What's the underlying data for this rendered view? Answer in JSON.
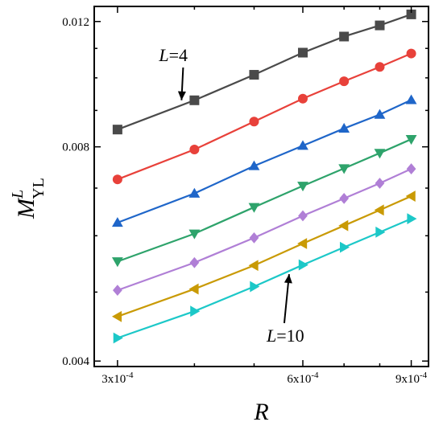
{
  "chart_data": {
    "type": "line",
    "xscale": "log",
    "yscale": "log",
    "xlim": [
      0.000275,
      0.00096
    ],
    "ylim": [
      0.00393,
      0.0126
    ],
    "xticks": [
      {
        "value": 0.0003,
        "label": "3x10-4"
      },
      {
        "value": 0.0006,
        "label": "6x10-4"
      },
      {
        "value": 0.0009,
        "label": "9x10-4"
      }
    ],
    "yticks": [
      {
        "value": 0.004,
        "label": "0.004"
      },
      {
        "value": 0.008,
        "label": "0.008"
      },
      {
        "value": 0.012,
        "label": "0.012"
      }
    ],
    "xlabel": "R",
    "ylabel": {
      "base": "M",
      "sup": "L",
      "sub": "YL"
    },
    "x": [
      0.0003,
      0.0004,
      0.0005,
      0.0006,
      0.0007,
      0.0008,
      0.0009
    ],
    "series": [
      {
        "color": "#4a4a4a",
        "marker": "square",
        "values": [
          0.00846,
          0.0093,
          0.0101,
          0.01085,
          0.01143,
          0.01185,
          0.01228
        ]
      },
      {
        "color": "#e8413a",
        "marker": "circle",
        "values": [
          0.0072,
          0.00793,
          0.00868,
          0.00935,
          0.00989,
          0.01036,
          0.01082
        ]
      },
      {
        "color": "#1f66c9",
        "marker": "triangle-up",
        "values": [
          0.00626,
          0.00688,
          0.00752,
          0.00803,
          0.00849,
          0.00888,
          0.00931
        ]
      },
      {
        "color": "#2ea36b",
        "marker": "triangle-down",
        "values": [
          0.00552,
          0.00604,
          0.00658,
          0.00705,
          0.00746,
          0.00784,
          0.0082
        ]
      },
      {
        "color": "#b07fd6",
        "marker": "diamond",
        "values": [
          0.00503,
          0.0055,
          0.00596,
          0.0064,
          0.00677,
          0.00711,
          0.00745
        ]
      },
      {
        "color": "#c99a05",
        "marker": "triangle-left",
        "values": [
          0.00462,
          0.00505,
          0.00545,
          0.00585,
          0.0062,
          0.00652,
          0.00682
        ]
      },
      {
        "color": "#1cc8c8",
        "marker": "triangle-right",
        "values": [
          0.00431,
          0.0047,
          0.00509,
          0.00546,
          0.00578,
          0.00607,
          0.00634
        ]
      }
    ],
    "annotations": [
      {
        "text_italic": "L",
        "text_rest": "=4",
        "target_x": 0.0004,
        "target_y": 0.00935
      },
      {
        "text_italic": "L",
        "text_rest": "=10",
        "target_x": 0.00057,
        "target_y": 0.00541
      }
    ]
  }
}
